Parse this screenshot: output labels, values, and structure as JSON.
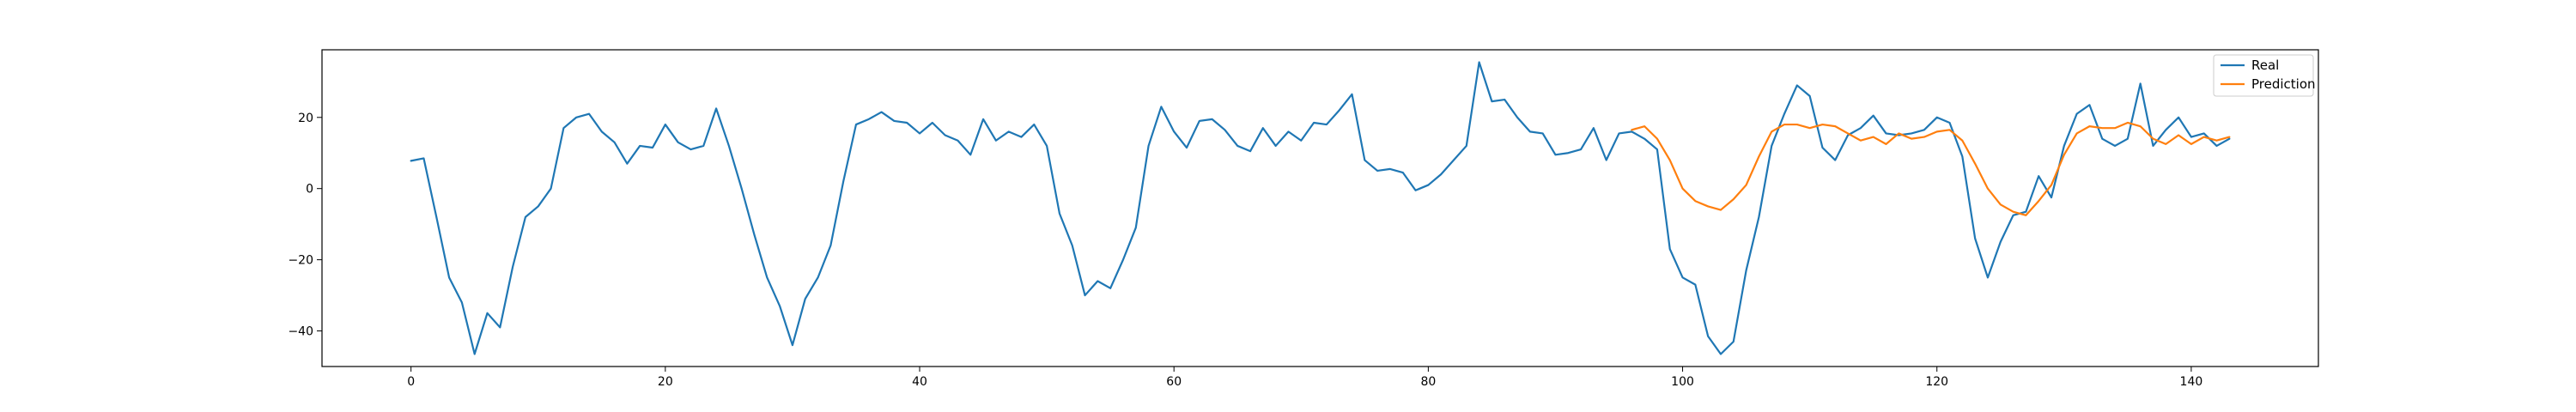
{
  "chart_data": {
    "type": "line",
    "title": "",
    "xlabel": "",
    "ylabel": "",
    "xlim": [
      -7,
      150
    ],
    "ylim": [
      -50,
      39
    ],
    "xticks": [
      0,
      20,
      40,
      60,
      80,
      100,
      120,
      140
    ],
    "yticks": [
      -40,
      -20,
      0,
      20
    ],
    "grid": false,
    "legend_position": "top-right",
    "series": [
      {
        "name": "Real",
        "color": "#1f77b4",
        "x_start": 0,
        "values": [
          7.8,
          8.5,
          -8,
          -25,
          -32,
          -46.5,
          -35,
          -39,
          -22,
          -8,
          -5,
          0,
          17,
          20,
          21,
          16,
          13,
          7,
          12,
          11.5,
          18,
          13,
          11,
          12,
          22.5,
          12,
          0,
          -13,
          -25,
          -33,
          -44,
          -31,
          -25,
          -16,
          2,
          18,
          19.5,
          21.5,
          19,
          18.5,
          15.5,
          18.5,
          15,
          13.5,
          9.5,
          19.5,
          13.5,
          16,
          14.5,
          18,
          12,
          -7,
          -16,
          -30,
          -26,
          -28,
          -20,
          -11,
          12,
          23,
          16,
          11.5,
          19,
          19.5,
          16.5,
          12,
          10.5,
          17,
          12,
          16,
          13.5,
          18.5,
          18,
          22,
          26.5,
          8,
          5,
          5.5,
          4.5,
          -0.5,
          1,
          4,
          8,
          12,
          35.5,
          24.5,
          25,
          20,
          16,
          15.5,
          9.5,
          10,
          11,
          17,
          8,
          15.5,
          16,
          14,
          11,
          -17,
          -25,
          -27,
          -41.5,
          -46.5,
          -43,
          -23,
          -8,
          12,
          21,
          29,
          26,
          11.5,
          8,
          15,
          17,
          20.5,
          15.5,
          15,
          15.5,
          16.5,
          20,
          18.5,
          9,
          -14,
          -25,
          -15,
          -7.5,
          -6.5,
          3.5,
          -2.5,
          12,
          21,
          23.5,
          14,
          12,
          14,
          29.5,
          12,
          16.5,
          20,
          14.5,
          15.5,
          12,
          14
        ]
      },
      {
        "name": "Prediction",
        "color": "#ff7f0e",
        "x_start": 96,
        "values": [
          16.5,
          17.5,
          14,
          8,
          0,
          -3.5,
          -5,
          -6,
          -3,
          1,
          9,
          16,
          18,
          18,
          17,
          18,
          17.5,
          15.5,
          13.5,
          14.5,
          12.5,
          15.5,
          14,
          14.5,
          16,
          16.5,
          13.5,
          7,
          0,
          -4.5,
          -6.5,
          -7.5,
          -3.5,
          1,
          9.5,
          15.5,
          17.5,
          17,
          17,
          18.5,
          17.5,
          14,
          12.5,
          15,
          12.5,
          14.5,
          13.5,
          14.5
        ]
      }
    ]
  }
}
